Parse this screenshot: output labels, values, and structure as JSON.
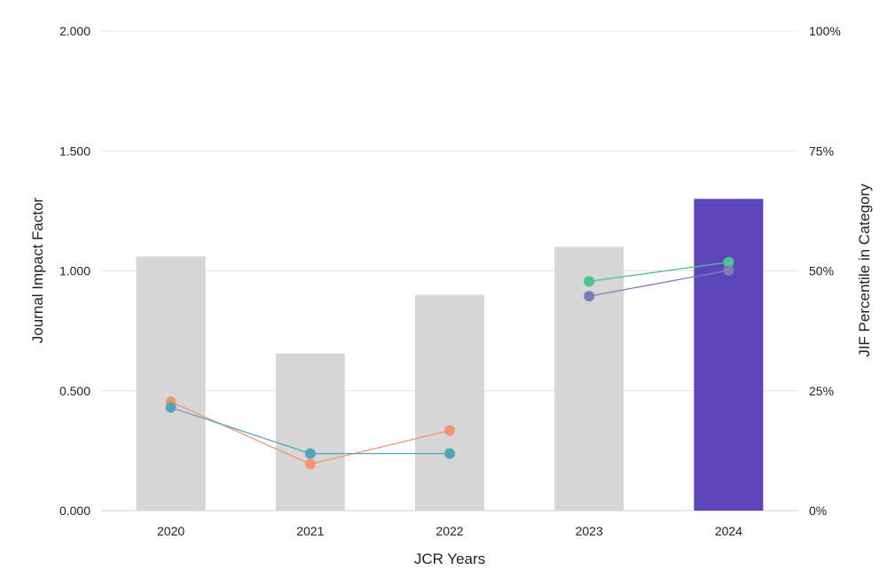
{
  "chart_data": {
    "type": "bar",
    "xlabel": "JCR Years",
    "ylabel": "Journal Impact Factor",
    "ylabel_right": "JIF Percentile in Category",
    "categories": [
      "2020",
      "2021",
      "2022",
      "2023",
      "2024"
    ],
    "ylim": [
      0,
      2.0
    ],
    "yticks": [
      "0.000",
      "0.500",
      "1.000",
      "1.500",
      "2.000"
    ],
    "ylim_right": [
      0,
      100
    ],
    "yticks_right": [
      "0%",
      "25%",
      "50%",
      "75%",
      "100%"
    ],
    "grid": true,
    "bars": {
      "values": [
        1.06,
        0.655,
        0.9,
        1.1,
        1.3
      ],
      "colors": [
        "#d6d6d6",
        "#d6d6d6",
        "#d6d6d6",
        "#d6d6d6",
        "#5b45b9"
      ]
    },
    "series": [
      {
        "color": "#f4956b",
        "axis": "right",
        "values": [
          22.7,
          9.7,
          16.7,
          null,
          null
        ]
      },
      {
        "color": "#54a4b9",
        "axis": "right",
        "values": [
          21.5,
          11.9,
          11.9,
          null,
          null
        ]
      },
      {
        "color": "#4dc392",
        "axis": "right",
        "values": [
          null,
          null,
          null,
          47.8,
          51.8
        ]
      },
      {
        "color": "#7b7fb9",
        "axis": "right",
        "values": [
          null,
          null,
          null,
          44.7,
          50.1
        ]
      }
    ]
  }
}
